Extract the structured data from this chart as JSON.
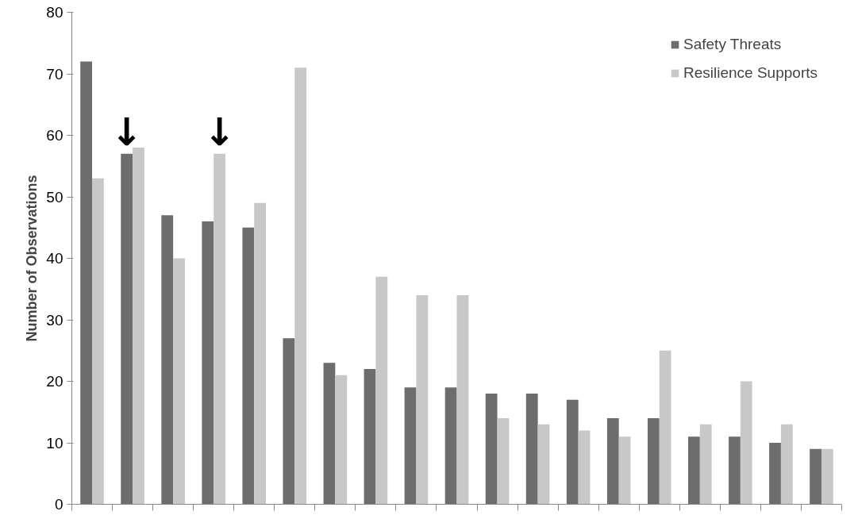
{
  "chart_data": {
    "type": "bar",
    "ylabel": "Number of Observations",
    "categories": [
      null,
      null,
      null,
      null,
      null,
      null,
      null,
      null,
      null,
      null,
      null,
      null,
      null,
      null,
      null,
      null,
      null,
      null,
      null
    ],
    "series": [
      {
        "name": "Safety Threats",
        "color": "#6d6d6d",
        "values": [
          72,
          57,
          47,
          46,
          45,
          27,
          23,
          22,
          19,
          19,
          18,
          18,
          17,
          14,
          14,
          11,
          11,
          10,
          9
        ]
      },
      {
        "name": "Resilience Supports",
        "color": "#c8c8c8",
        "values": [
          53,
          58,
          40,
          57,
          49,
          71,
          21,
          37,
          34,
          34,
          14,
          13,
          12,
          11,
          25,
          13,
          20,
          13,
          9
        ]
      }
    ],
    "annotations": [
      {
        "text": "↓",
        "y": 57
      },
      {
        "text": "↓",
        "y": 57
      }
    ],
    "ylim": [
      0,
      80
    ],
    "yticks": [
      0,
      10,
      20,
      30,
      40,
      50,
      60,
      70,
      80
    ],
    "grid": false,
    "legend": "top right"
  }
}
